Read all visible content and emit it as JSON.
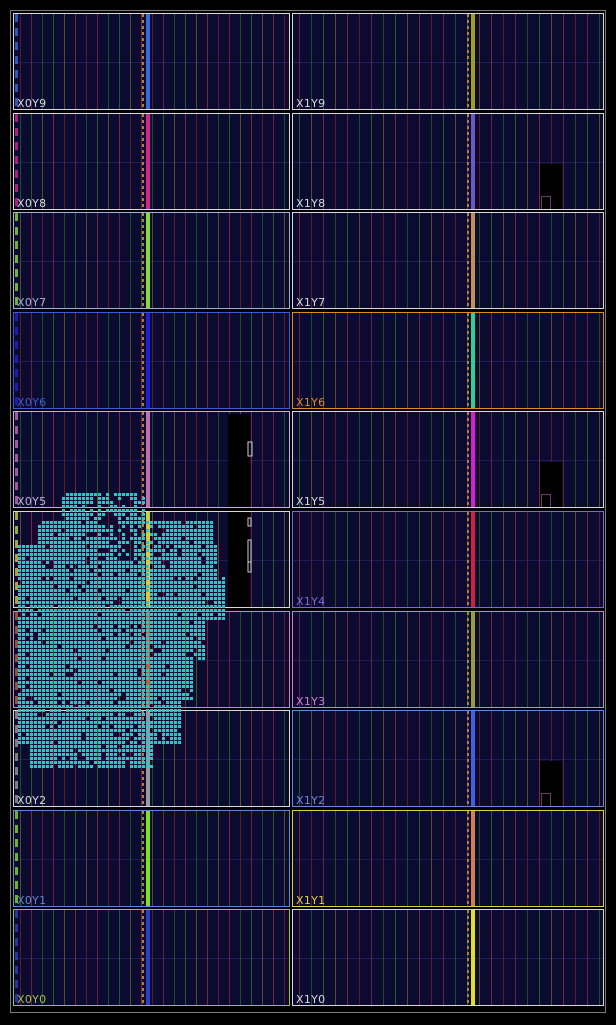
{
  "clock_regions": [
    {
      "id": "X0Y9",
      "label": "X0Y9",
      "label_color": "#d8d8d8",
      "border_color": "#d8d8d8"
    },
    {
      "id": "X1Y9",
      "label": "X1Y9",
      "label_color": "#d8d8d8",
      "border_color": "#d8d8d8"
    },
    {
      "id": "X0Y8",
      "label": "X0Y8",
      "label_color": "#d8d8d8",
      "border_color": "#d8d8d8"
    },
    {
      "id": "X1Y8",
      "label": "X1Y8",
      "label_color": "#d8d8d8",
      "border_color": "#d8d8d8"
    },
    {
      "id": "X0Y7",
      "label": "X0Y7",
      "label_color": "#9fb0d8",
      "border_color": "#9fb0d8"
    },
    {
      "id": "X1Y7",
      "label": "X1Y7",
      "label_color": "#d8d8d8",
      "border_color": "#d8d8d8"
    },
    {
      "id": "X0Y6",
      "label": "X0Y6",
      "label_color": "#3a5cd0",
      "border_color": "#3a5cd0"
    },
    {
      "id": "X1Y6",
      "label": "X1Y6",
      "label_color": "#e08a20",
      "border_color": "#e08a20"
    },
    {
      "id": "X0Y5",
      "label": "X0Y5",
      "label_color": "#c8a8e8",
      "border_color": "#c8a8e8"
    },
    {
      "id": "X1Y5",
      "label": "X1Y5",
      "label_color": "#d8d8d8",
      "border_color": "#d8d8d8"
    },
    {
      "id": "X0Y4",
      "label": "",
      "label_color": "#d8d8d8",
      "border_color": "#d8d8d8"
    },
    {
      "id": "X1Y4",
      "label": "X1Y4",
      "label_color": "#7a6ad8",
      "border_color": "#7a6ad8"
    },
    {
      "id": "X0Y3",
      "label": "",
      "label_color": "#d878d8",
      "border_color": "#d878d8"
    },
    {
      "id": "X1Y3",
      "label": "X1Y3",
      "label_color": "#d878d8",
      "border_color": "#d878d8"
    },
    {
      "id": "X0Y2",
      "label": "X0Y2",
      "label_color": "#d8d8d8",
      "border_color": "#d8d8d8"
    },
    {
      "id": "X1Y2",
      "label": "X1Y2",
      "label_color": "#6a88e0",
      "border_color": "#6a88e0"
    },
    {
      "id": "X0Y1",
      "label": "X0Y1",
      "label_color": "#5a8ad0",
      "border_color": "#5a8ad0"
    },
    {
      "id": "X1Y1",
      "label": "X1Y1",
      "label_color": "#e0d040",
      "border_color": "#e0d040"
    },
    {
      "id": "X0Y0",
      "label": "X0Y0",
      "label_color": "#a0c040",
      "border_color": "#a0c040"
    },
    {
      "id": "X1Y0",
      "label": "X1Y0",
      "label_color": "#d8d8d8",
      "border_color": "#d8d8d8"
    }
  ],
  "colors": {
    "background": "#000000",
    "region_fill": "#0b0b32",
    "placed_cells": "#2ec5c5",
    "column_palette": [
      "#7a2020",
      "#8a2a4a",
      "#1f6a1f",
      "#2a7a2a",
      "#6a6a20",
      "#a03040"
    ]
  },
  "placed_logic": {
    "fill_fraction_x0y4_x0y2": 0.85
  }
}
